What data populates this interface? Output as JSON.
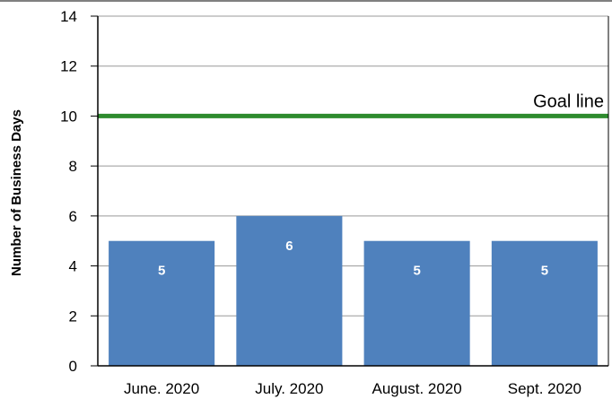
{
  "chart_data": {
    "type": "bar",
    "title": "",
    "xlabel": "",
    "ylabel": "Number of Business Days",
    "categories": [
      "June. 2020",
      "July. 2020",
      "August. 2020",
      "Sept. 2020"
    ],
    "values": [
      5,
      6,
      5,
      5
    ],
    "data_labels": [
      "5",
      "6",
      "5",
      "5"
    ],
    "ylim": [
      0,
      14
    ],
    "yticks": [
      0,
      2,
      4,
      6,
      8,
      10,
      12,
      14
    ],
    "ytick_labels": [
      "0",
      "2",
      "4",
      "6",
      "8",
      "10",
      "12",
      "14"
    ],
    "grid": true,
    "goal_line": {
      "value": 10,
      "label": "Goal line"
    },
    "colors": {
      "bar": "#4F81BD",
      "goal": "#2E8B2E",
      "grid": "#999999",
      "axis": "#000000"
    }
  }
}
